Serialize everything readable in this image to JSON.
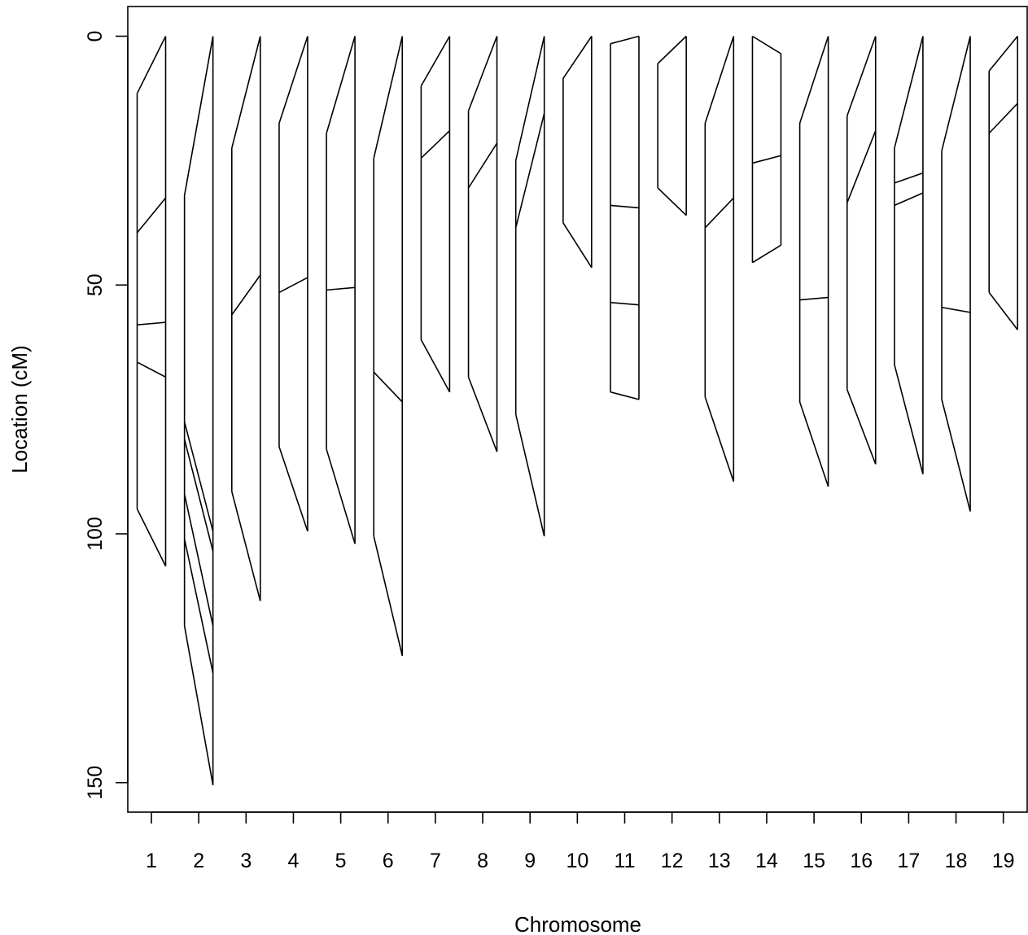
{
  "chart_data": {
    "type": "linkage-map-comparison",
    "title": "",
    "xlabel": "Chromosome",
    "ylabel": "Location (cM)",
    "y_reversed": true,
    "ylim": [
      156,
      -6
    ],
    "yticks": [
      0,
      50,
      100,
      150
    ],
    "grid": false,
    "colors": {
      "line": "#000000",
      "background": "#ffffff"
    },
    "categories": [
      "1",
      "2",
      "3",
      "4",
      "5",
      "6",
      "7",
      "8",
      "9",
      "10",
      "11",
      "12",
      "13",
      "14",
      "15",
      "16",
      "17",
      "18",
      "19"
    ],
    "chromosomes": [
      {
        "label": "1",
        "left_range": [
          11.5,
          95
        ],
        "right_range": [
          0,
          106.5
        ],
        "links": [
          [
            39.5,
            32.5
          ],
          [
            58,
            57.5
          ],
          [
            65.5,
            68.5
          ]
        ]
      },
      {
        "label": "2",
        "left_range": [
          32,
          118.5
        ],
        "right_range": [
          0,
          150.5
        ],
        "links": [
          [
            77.5,
            99.5
          ],
          [
            81,
            103.5
          ],
          [
            92,
            118.5
          ],
          [
            101,
            128
          ]
        ]
      },
      {
        "label": "3",
        "left_range": [
          22.5,
          91.5
        ],
        "right_range": [
          0,
          113.5
        ],
        "links": [
          [
            56,
            48
          ]
        ]
      },
      {
        "label": "4",
        "left_range": [
          17.5,
          82.5
        ],
        "right_range": [
          0,
          99.5
        ],
        "links": [
          [
            51.5,
            48.5
          ]
        ]
      },
      {
        "label": "5",
        "left_range": [
          19.5,
          83
        ],
        "right_range": [
          0,
          102
        ],
        "links": [
          [
            51,
            50.5
          ]
        ]
      },
      {
        "label": "6",
        "left_range": [
          24.5,
          100.5
        ],
        "right_range": [
          0,
          124.5
        ],
        "links": [
          [
            67.5,
            73.5
          ]
        ]
      },
      {
        "label": "7",
        "left_range": [
          10,
          61
        ],
        "right_range": [
          0,
          71.5
        ],
        "links": [
          [
            24.5,
            19
          ]
        ]
      },
      {
        "label": "8",
        "left_range": [
          15,
          68.5
        ],
        "right_range": [
          0,
          83.5
        ],
        "links": [
          [
            30.5,
            21.5
          ]
        ]
      },
      {
        "label": "9",
        "left_range": [
          25,
          76
        ],
        "right_range": [
          0,
          100.5
        ],
        "links": [
          [
            38.5,
            15.5
          ]
        ]
      },
      {
        "label": "10",
        "left_range": [
          8.5,
          37.5
        ],
        "right_range": [
          0,
          46.5
        ],
        "links": []
      },
      {
        "label": "11",
        "left_range": [
          1.5,
          71.5
        ],
        "right_range": [
          0,
          73
        ],
        "links": [
          [
            34,
            34.5
          ],
          [
            53.5,
            54
          ]
        ]
      },
      {
        "label": "12",
        "left_range": [
          5.5,
          30.5
        ],
        "right_range": [
          0,
          36
        ],
        "links": []
      },
      {
        "label": "13",
        "left_range": [
          17.5,
          72.5
        ],
        "right_range": [
          0,
          89.5
        ],
        "links": [
          [
            38.5,
            32.5
          ]
        ]
      },
      {
        "label": "14",
        "left_range": [
          0,
          45.5
        ],
        "right_range": [
          3.5,
          42
        ],
        "links": [
          [
            25.5,
            24
          ]
        ]
      },
      {
        "label": "15",
        "left_range": [
          17.5,
          73.5
        ],
        "right_range": [
          0,
          90.5
        ],
        "links": [
          [
            53,
            52.5
          ]
        ]
      },
      {
        "label": "16",
        "left_range": [
          16,
          71
        ],
        "right_range": [
          0,
          86
        ],
        "links": [
          [
            33.5,
            19
          ]
        ]
      },
      {
        "label": "17",
        "left_range": [
          22.5,
          66
        ],
        "right_range": [
          0,
          88
        ],
        "links": [
          [
            29.5,
            27.5
          ],
          [
            34,
            31.5
          ]
        ]
      },
      {
        "label": "18",
        "left_range": [
          23,
          73
        ],
        "right_range": [
          0,
          95.5
        ],
        "links": [
          [
            54.5,
            55.5
          ]
        ]
      },
      {
        "label": "19",
        "left_range": [
          7,
          51.5
        ],
        "right_range": [
          0,
          59
        ],
        "links": [
          [
            19.5,
            13.5
          ]
        ]
      }
    ]
  }
}
